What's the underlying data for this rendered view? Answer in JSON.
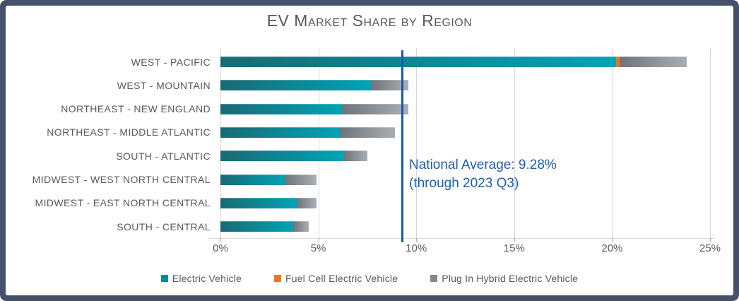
{
  "window": {
    "border_color": "#45506a",
    "background": "#ffffff",
    "text_color": "#595959",
    "gridline_color": "#d9d9d9"
  },
  "chart_data": {
    "type": "bar",
    "orientation": "horizontal",
    "title": "EV Market Share by Region",
    "categories": [
      "WEST - PACIFIC",
      "WEST - MOUNTAIN",
      "NORTHEAST - NEW ENGLAND",
      "NORTHEAST - MIDDLE ATLANTIC",
      "SOUTH - ATLANTIC",
      "MIDWEST - WEST NORTH CENTRAL",
      "MIDWEST - EAST NORTH CENTRAL",
      "SOUTH - CENTRAL"
    ],
    "series": [
      {
        "name": "Electric Vehicle",
        "legend_color": "#0a8a99",
        "color_start": "#1a6a73",
        "color_end": "#00a3b6",
        "values": [
          20.2,
          7.7,
          6.2,
          6.1,
          6.3,
          3.3,
          3.9,
          3.7
        ]
      },
      {
        "name": "Fuel Cell Electric Vehicle",
        "legend_color": "#e87722",
        "color_start": "#e87722",
        "color_end": "#e87722",
        "values": [
          0.2,
          0,
          0,
          0,
          0,
          0,
          0,
          0
        ]
      },
      {
        "name": "Plug In Hybrid Electric Vehicle",
        "legend_color": "#84888c",
        "color_start": "#6d747a",
        "color_end": "#aaafb3",
        "values": [
          3.4,
          1.9,
          3.4,
          2.8,
          1.2,
          1.6,
          1.0,
          0.8
        ]
      }
    ],
    "x_ticks": [
      {
        "value": 0,
        "label": "0%"
      },
      {
        "value": 5,
        "label": "5%"
      },
      {
        "value": 10,
        "label": "10%"
      },
      {
        "value": 15,
        "label": "15%"
      },
      {
        "value": 20,
        "label": "20%"
      },
      {
        "value": 25,
        "label": "25%"
      }
    ],
    "xlim": [
      0,
      25
    ],
    "grid": true,
    "legend_position": "bottom",
    "annotation": {
      "line_value": 9.28,
      "line_color": "#1159ad",
      "label_line1": "National Average: 9.28%",
      "label_line2": "(through 2023 Q3)",
      "label_color": "#1e5fad"
    }
  }
}
